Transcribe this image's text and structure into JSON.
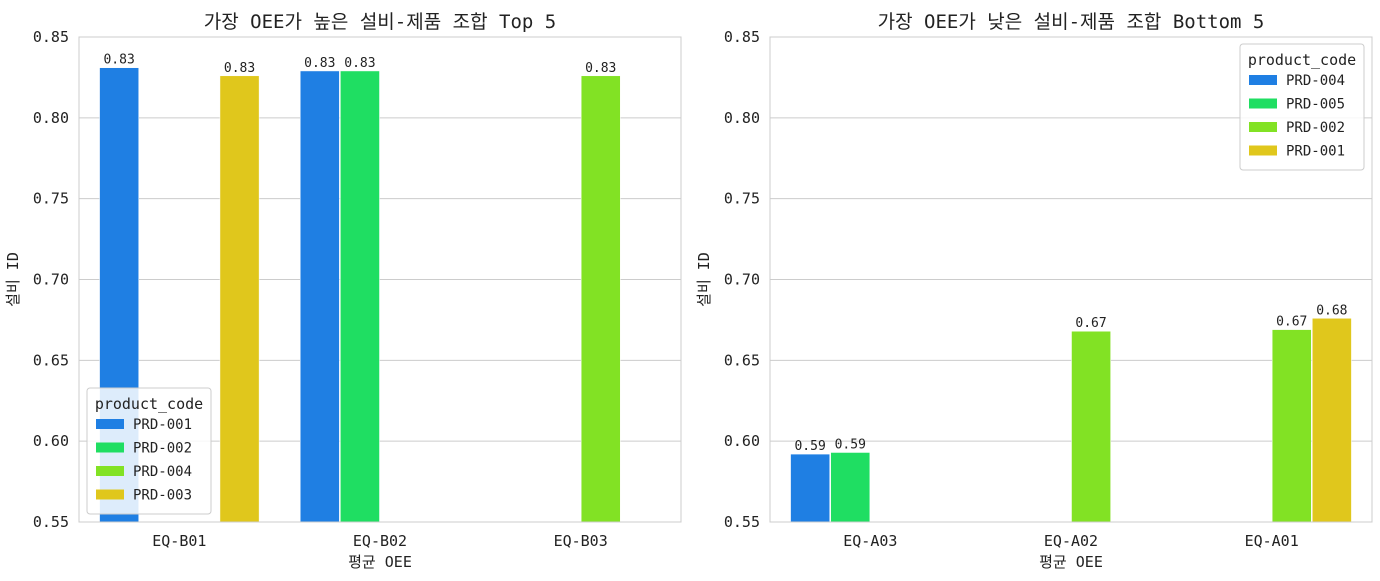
{
  "chart_data": [
    {
      "type": "bar",
      "title": "가장 OEE가 높은 설비-제품 조합 Top 5",
      "xlabel": "평균 OEE",
      "ylabel": "설비 ID",
      "ylim": [
        0.55,
        0.85
      ],
      "yticks": [
        "0.55",
        "0.60",
        "0.65",
        "0.70",
        "0.75",
        "0.80",
        "0.85"
      ],
      "grid": true,
      "categories": [
        "EQ-B01",
        "EQ-B02",
        "EQ-B03"
      ],
      "legend": {
        "title": "product_code",
        "placement": "lower-left"
      },
      "series": [
        {
          "name": "PRD-001",
          "color": "#1f7fe3",
          "values": [
            0.831,
            0.829,
            null
          ],
          "labels": [
            "0.83",
            "0.83",
            ""
          ]
        },
        {
          "name": "PRD-002",
          "color": "#1fde62",
          "values": [
            null,
            0.829,
            null
          ],
          "labels": [
            "",
            "0.83",
            ""
          ]
        },
        {
          "name": "PRD-004",
          "color": "#82e224",
          "values": [
            null,
            null,
            0.826
          ],
          "labels": [
            "",
            "",
            "0.83"
          ]
        },
        {
          "name": "PRD-003",
          "color": "#e0c71c",
          "values": [
            0.826,
            null,
            null
          ],
          "labels": [
            "0.83",
            "",
            ""
          ]
        }
      ]
    },
    {
      "type": "bar",
      "title": "가장 OEE가 낮은 설비-제품 조합 Bottom 5",
      "xlabel": "평균 OEE",
      "ylabel": "설비 ID",
      "ylim": [
        0.55,
        0.85
      ],
      "yticks": [
        "0.55",
        "0.60",
        "0.65",
        "0.70",
        "0.75",
        "0.80",
        "0.85"
      ],
      "grid": true,
      "categories": [
        "EQ-A03",
        "EQ-A02",
        "EQ-A01"
      ],
      "legend": {
        "title": "product_code",
        "placement": "upper-right"
      },
      "series": [
        {
          "name": "PRD-004",
          "color": "#1f7fe3",
          "values": [
            0.592,
            null,
            null
          ],
          "labels": [
            "0.59",
            "",
            ""
          ]
        },
        {
          "name": "PRD-005",
          "color": "#1fde62",
          "values": [
            0.593,
            null,
            null
          ],
          "labels": [
            "0.59",
            "",
            ""
          ]
        },
        {
          "name": "PRD-002",
          "color": "#82e224",
          "values": [
            null,
            0.668,
            0.669
          ],
          "labels": [
            "",
            "0.67",
            "0.67"
          ]
        },
        {
          "name": "PRD-001",
          "color": "#e0c71c",
          "values": [
            null,
            null,
            0.676
          ],
          "labels": [
            "",
            "",
            "0.68"
          ]
        }
      ]
    }
  ]
}
